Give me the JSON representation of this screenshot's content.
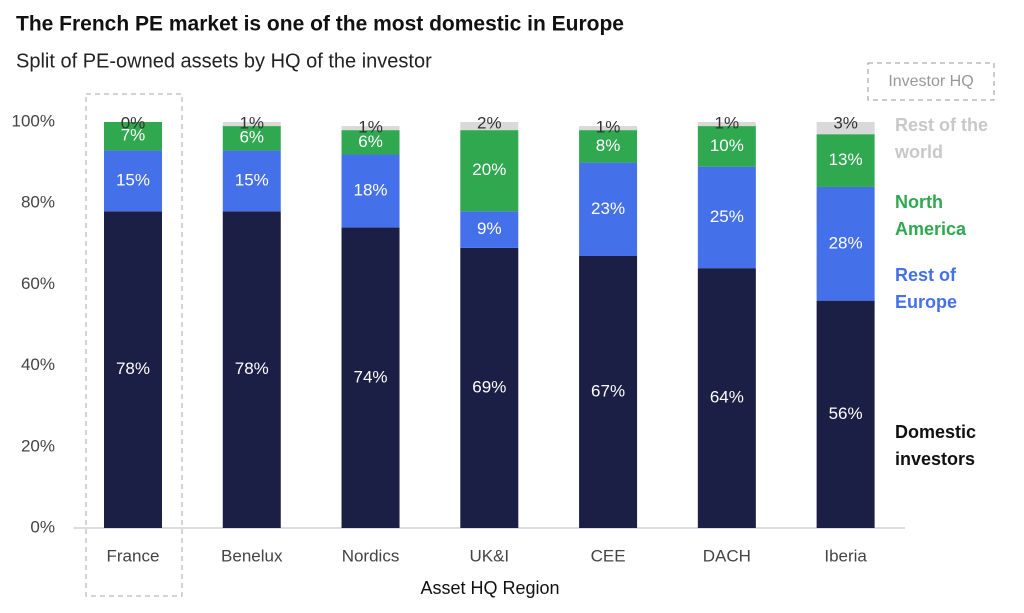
{
  "chart_data": {
    "type": "stacked_bar",
    "title": "The French PE market is one of the most domestic in Europe",
    "subtitle": "Split of PE-owned assets by HQ of the investor",
    "x_label": "Asset HQ Region",
    "legend_title": "Investor HQ",
    "categories": [
      "France",
      "Benelux",
      "Nordics",
      "UK&I",
      "CEE",
      "DACH",
      "Iberia"
    ],
    "series": [
      {
        "name": "Domestic investors",
        "color": "#1b1e45",
        "values": [
          78,
          78,
          74,
          69,
          67,
          64,
          56
        ],
        "value_labels": [
          "78%",
          "78%",
          "74%",
          "69%",
          "67%",
          "64%",
          "56%"
        ]
      },
      {
        "name": "Rest of Europe",
        "color": "#4470ea",
        "values": [
          15,
          15,
          18,
          9,
          23,
          25,
          28
        ],
        "value_labels": [
          "15%",
          "15%",
          "18%",
          "9%",
          "23%",
          "25%",
          "28%"
        ]
      },
      {
        "name": "North America",
        "color": "#2fa84f",
        "values": [
          7,
          6,
          6,
          20,
          8,
          10,
          13
        ],
        "value_labels": [
          "7%",
          "6%",
          "6%",
          "20%",
          "8%",
          "10%",
          "13%"
        ]
      },
      {
        "name": "Rest of the world",
        "color": "#d9d9d9",
        "values": [
          0,
          1,
          1,
          2,
          1,
          1,
          3
        ],
        "value_labels": [
          "0%",
          "1%",
          "1%",
          "2%",
          "1%",
          "1%",
          "3%"
        ]
      }
    ],
    "ylim": [
      0,
      100
    ],
    "yticks": [
      {
        "value": 0,
        "label": "0%"
      },
      {
        "value": 20,
        "label": "20%"
      },
      {
        "value": 40,
        "label": "40%"
      },
      {
        "value": 60,
        "label": "60%"
      },
      {
        "value": 80,
        "label": "80%"
      },
      {
        "value": 100,
        "label": "100%"
      }
    ],
    "grid": false
  }
}
